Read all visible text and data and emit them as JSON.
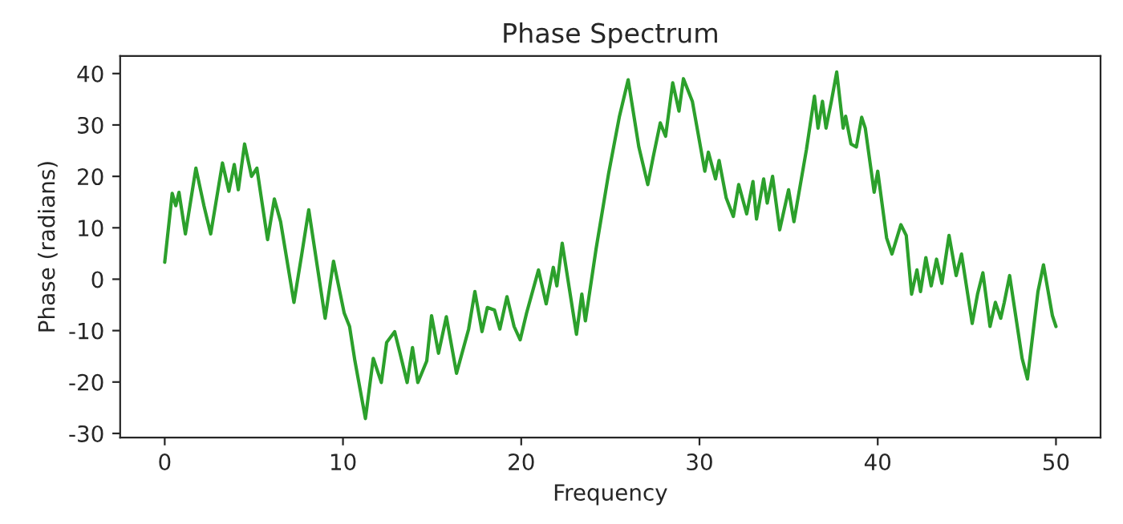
{
  "chart_data": {
    "type": "line",
    "title": "Phase Spectrum",
    "xlabel": "Frequency",
    "ylabel": "Phase (radians)",
    "xlim": [
      -2.5,
      52.5
    ],
    "xticks": [
      0,
      10,
      20,
      30,
      40,
      50
    ],
    "ylim": [
      -30.8,
      43.4
    ],
    "yticks": [
      -30,
      -20,
      -10,
      0,
      10,
      20,
      30,
      40
    ],
    "grid": false,
    "legend": false,
    "series": [
      {
        "color": "#2ca02c",
        "x": [
          0,
          0.42,
          0.62,
          0.8,
          1.16,
          1.75,
          2.2,
          2.58,
          3.24,
          3.6,
          3.9,
          4.13,
          4.48,
          4.87,
          5.17,
          5.77,
          6.15,
          6.5,
          7.25,
          7.69,
          8.08,
          9.0,
          9.47,
          10.07,
          10.37,
          10.67,
          11.26,
          11.7,
          12.15,
          12.45,
          12.9,
          13.2,
          13.6,
          13.9,
          14.2,
          14.7,
          14.97,
          15.36,
          15.8,
          16.37,
          17.05,
          17.4,
          17.8,
          18.1,
          18.5,
          18.8,
          19.2,
          19.6,
          19.94,
          20.3,
          20.97,
          21.4,
          21.8,
          22.0,
          22.3,
          23.1,
          23.4,
          23.6,
          24.2,
          24.9,
          25.5,
          26.0,
          26.6,
          27.1,
          27.4,
          27.8,
          28.1,
          28.5,
          28.85,
          29.1,
          29.6,
          30.3,
          30.5,
          30.9,
          31.1,
          31.5,
          31.9,
          32.2,
          32.65,
          33.0,
          33.2,
          33.6,
          33.8,
          34.1,
          34.5,
          35.0,
          35.3,
          36.0,
          36.45,
          36.65,
          36.9,
          37.1,
          37.4,
          37.7,
          38.06,
          38.2,
          38.5,
          38.8,
          39.1,
          39.3,
          39.8,
          40.0,
          40.5,
          40.8,
          41.3,
          41.6,
          41.9,
          42.2,
          42.4,
          42.7,
          43.0,
          43.3,
          43.6,
          44.0,
          44.4,
          44.7,
          45.3,
          45.6,
          45.9,
          46.3,
          46.6,
          46.9,
          47.1,
          47.4,
          48.1,
          48.4,
          48.99,
          49.3,
          49.8,
          50.0
        ],
        "values": [
          3.3,
          16.7,
          14.3,
          16.9,
          8.8,
          21.6,
          14.3,
          8.8,
          22.6,
          17.1,
          22.3,
          17.4,
          26.3,
          20.0,
          21.6,
          7.7,
          15.6,
          11.2,
          -4.5,
          4.9,
          13.5,
          -7.6,
          3.5,
          -6.6,
          -9.2,
          -15.9,
          -27.1,
          -15.4,
          -20.1,
          -12.3,
          -10.2,
          -14.4,
          -20.1,
          -13.3,
          -20.1,
          -15.9,
          -7.1,
          -14.4,
          -7.3,
          -18.3,
          -9.7,
          -2.4,
          -10.2,
          -5.5,
          -6.0,
          -9.7,
          -3.4,
          -9.2,
          -11.8,
          -6.6,
          1.8,
          -4.8,
          2.3,
          -1.3,
          7.0,
          -10.7,
          -2.9,
          -8.1,
          5.9,
          20.5,
          31.5,
          38.8,
          25.7,
          18.4,
          23.7,
          30.4,
          27.8,
          38.2,
          32.7,
          39.0,
          34.6,
          21.0,
          24.7,
          19.5,
          23.1,
          15.8,
          12.2,
          18.4,
          12.7,
          19.0,
          11.7,
          19.5,
          14.8,
          20.0,
          9.6,
          17.4,
          11.2,
          25.2,
          35.6,
          29.4,
          34.6,
          29.4,
          34.6,
          40.3,
          29.4,
          31.7,
          26.3,
          25.7,
          31.5,
          29.4,
          16.9,
          21.0,
          8.0,
          4.9,
          10.6,
          8.5,
          -2.9,
          1.8,
          -2.4,
          4.2,
          -1.3,
          3.9,
          -0.8,
          8.5,
          0.7,
          4.9,
          -8.6,
          -2.9,
          1.25,
          -9.2,
          -4.5,
          -7.6,
          -4.5,
          0.7,
          -15.4,
          -19.4,
          -2.4,
          2.8,
          -7.1,
          -9.2
        ]
      }
    ]
  }
}
